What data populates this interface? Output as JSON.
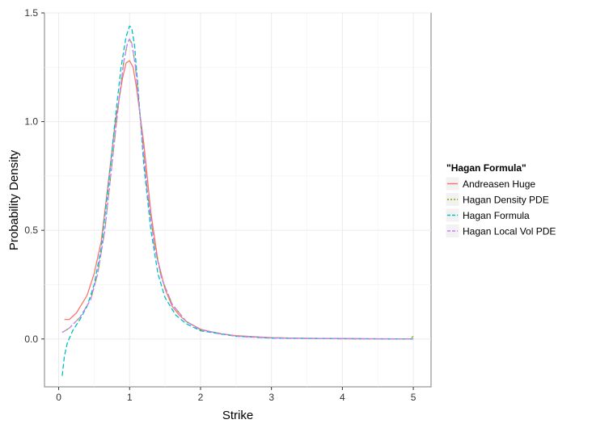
{
  "chart_data": {
    "type": "line",
    "xlabel": "Strike",
    "ylabel": "Probability Density",
    "xlim": [
      -0.2,
      5.25
    ],
    "ylim": [
      -0.22,
      1.5
    ],
    "x_ticks": [
      "0",
      "1",
      "2",
      "3",
      "4",
      "5"
    ],
    "x_tick_values": [
      0,
      1,
      2,
      3,
      4,
      5
    ],
    "y_ticks": [
      "0.0",
      "0.5",
      "1.0",
      "1.5"
    ],
    "y_tick_values": [
      0,
      0.5,
      1.0,
      1.5
    ],
    "grid": true,
    "legend": {
      "title": "\"Hagan Formula\"",
      "position": "right"
    },
    "series": [
      {
        "name": "Andreasen Huge",
        "color": "#F8766D",
        "dash": "solid",
        "points": [
          [
            0.08,
            0.09
          ],
          [
            0.15,
            0.09
          ],
          [
            0.25,
            0.12
          ],
          [
            0.4,
            0.2
          ],
          [
            0.5,
            0.3
          ],
          [
            0.6,
            0.45
          ],
          [
            0.7,
            0.72
          ],
          [
            0.8,
            1.0
          ],
          [
            0.9,
            1.2
          ],
          [
            0.95,
            1.27
          ],
          [
            1.0,
            1.28
          ],
          [
            1.05,
            1.25
          ],
          [
            1.1,
            1.15
          ],
          [
            1.2,
            0.9
          ],
          [
            1.3,
            0.58
          ],
          [
            1.4,
            0.36
          ],
          [
            1.5,
            0.23
          ],
          [
            1.6,
            0.15
          ],
          [
            1.7,
            0.11
          ],
          [
            1.8,
            0.08
          ],
          [
            2.0,
            0.045
          ],
          [
            2.25,
            0.025
          ],
          [
            2.5,
            0.015
          ],
          [
            3.0,
            0.006
          ],
          [
            3.5,
            0.003
          ],
          [
            4.0,
            0.002
          ],
          [
            5.0,
            0.0
          ]
        ]
      },
      {
        "name": "Hagan Density PDE",
        "color": "#7CAE00",
        "dash": "3,3",
        "points": [
          [
            0.05,
            0.03
          ],
          [
            0.15,
            0.05
          ],
          [
            0.3,
            0.1
          ],
          [
            0.45,
            0.18
          ],
          [
            0.55,
            0.3
          ],
          [
            0.65,
            0.5
          ],
          [
            0.75,
            0.8
          ],
          [
            0.85,
            1.1
          ],
          [
            0.92,
            1.28
          ],
          [
            0.97,
            1.36
          ],
          [
            1.0,
            1.38
          ],
          [
            1.03,
            1.36
          ],
          [
            1.08,
            1.26
          ],
          [
            1.15,
            1.02
          ],
          [
            1.25,
            0.68
          ],
          [
            1.35,
            0.43
          ],
          [
            1.45,
            0.28
          ],
          [
            1.6,
            0.16
          ],
          [
            1.8,
            0.08
          ],
          [
            2.0,
            0.042
          ],
          [
            2.5,
            0.013
          ],
          [
            3.0,
            0.005
          ],
          [
            4.0,
            0.001
          ],
          [
            4.95,
            0.0
          ],
          [
            5.0,
            0.012
          ]
        ]
      },
      {
        "name": "Hagan Formula",
        "color": "#00BFC4",
        "dash": "6,3",
        "points": [
          [
            0.05,
            -0.17
          ],
          [
            0.08,
            -0.08
          ],
          [
            0.12,
            -0.02
          ],
          [
            0.2,
            0.04
          ],
          [
            0.3,
            0.09
          ],
          [
            0.4,
            0.15
          ],
          [
            0.5,
            0.25
          ],
          [
            0.6,
            0.42
          ],
          [
            0.7,
            0.7
          ],
          [
            0.8,
            1.02
          ],
          [
            0.88,
            1.25
          ],
          [
            0.95,
            1.39
          ],
          [
            1.0,
            1.44
          ],
          [
            1.03,
            1.43
          ],
          [
            1.07,
            1.35
          ],
          [
            1.12,
            1.15
          ],
          [
            1.2,
            0.8
          ],
          [
            1.3,
            0.5
          ],
          [
            1.4,
            0.3
          ],
          [
            1.5,
            0.19
          ],
          [
            1.65,
            0.11
          ],
          [
            1.8,
            0.07
          ],
          [
            2.0,
            0.038
          ],
          [
            2.5,
            0.012
          ],
          [
            3.0,
            0.004
          ],
          [
            4.0,
            0.001
          ],
          [
            5.0,
            0.0
          ]
        ]
      },
      {
        "name": "Hagan Local Vol PDE",
        "color": "#C77CFF",
        "dash": "6,3",
        "points": [
          [
            0.05,
            0.03
          ],
          [
            0.15,
            0.05
          ],
          [
            0.3,
            0.1
          ],
          [
            0.45,
            0.18
          ],
          [
            0.55,
            0.3
          ],
          [
            0.65,
            0.5
          ],
          [
            0.75,
            0.8
          ],
          [
            0.85,
            1.1
          ],
          [
            0.92,
            1.28
          ],
          [
            0.97,
            1.36
          ],
          [
            1.0,
            1.38
          ],
          [
            1.03,
            1.36
          ],
          [
            1.08,
            1.26
          ],
          [
            1.15,
            1.02
          ],
          [
            1.25,
            0.68
          ],
          [
            1.35,
            0.43
          ],
          [
            1.45,
            0.28
          ],
          [
            1.6,
            0.16
          ],
          [
            1.8,
            0.08
          ],
          [
            2.0,
            0.042
          ],
          [
            2.5,
            0.013
          ],
          [
            3.0,
            0.005
          ],
          [
            4.0,
            0.001
          ],
          [
            5.0,
            0.0
          ]
        ]
      }
    ]
  }
}
